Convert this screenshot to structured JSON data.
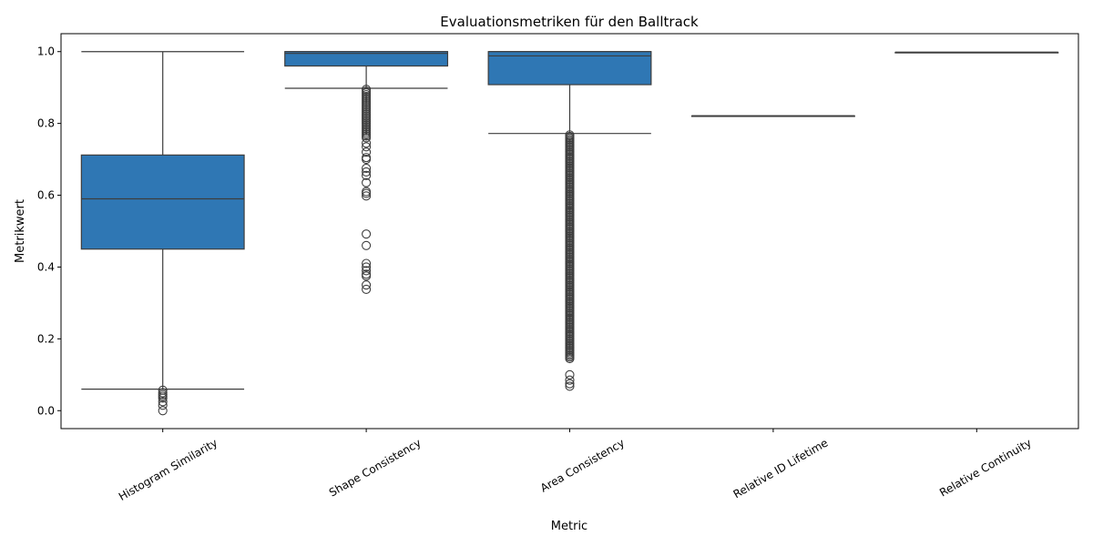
{
  "chart_data": {
    "type": "box",
    "title": "Evaluationsmetriken für den Balltrack",
    "xlabel": "Metric",
    "ylabel": "Metrikwert",
    "ylim": [
      -0.05,
      1.05
    ],
    "yticks": [
      0.0,
      0.2,
      0.4,
      0.6,
      0.8,
      1.0
    ],
    "ytick_labels": [
      "0.0",
      "0.2",
      "0.4",
      "0.6",
      "0.8",
      "1.0"
    ],
    "grid": false,
    "box_color": "#2f77b4",
    "categories": [
      "Histogram Similarity",
      "Shape Consistency",
      "Area Consistency",
      "Relative ID Lifetime",
      "Relative Continuity"
    ],
    "boxes": [
      {
        "category": "Histogram Similarity",
        "whisker_low": 0.06,
        "q1": 0.45,
        "median": 0.59,
        "q3": 0.712,
        "whisker_high": 1.0,
        "outliers": [
          0.057,
          0.05,
          0.045,
          0.04,
          0.035,
          0.025,
          0.015,
          0.0
        ]
      },
      {
        "category": "Shape Consistency",
        "whisker_low": 0.898,
        "q1": 0.96,
        "median": 0.995,
        "q3": 1.0,
        "whisker_high": 1.0,
        "outliers": [
          0.895,
          0.89,
          0.885,
          0.88,
          0.875,
          0.87,
          0.865,
          0.86,
          0.855,
          0.85,
          0.845,
          0.84,
          0.835,
          0.83,
          0.825,
          0.82,
          0.815,
          0.81,
          0.805,
          0.8,
          0.795,
          0.79,
          0.785,
          0.78,
          0.775,
          0.77,
          0.765,
          0.76,
          0.745,
          0.735,
          0.72,
          0.705,
          0.7,
          0.675,
          0.665,
          0.655,
          0.635,
          0.61,
          0.605,
          0.598,
          0.492,
          0.46,
          0.41,
          0.4,
          0.39,
          0.38,
          0.375,
          0.35,
          0.338
        ]
      },
      {
        "category": "Area Consistency",
        "whisker_low": 0.772,
        "q1": 0.908,
        "median": 0.988,
        "q3": 1.0,
        "whisker_high": 1.0,
        "outliers_dense_range": [
          0.145,
          0.768
        ],
        "outliers": [
          0.1,
          0.085,
          0.075,
          0.068
        ]
      },
      {
        "category": "Relative ID Lifetime",
        "whisker_low": 0.821,
        "q1": 0.821,
        "median": 0.821,
        "q3": 0.821,
        "whisker_high": 0.821,
        "outliers": []
      },
      {
        "category": "Relative Continuity",
        "whisker_low": 0.998,
        "q1": 0.998,
        "median": 0.998,
        "q3": 0.998,
        "whisker_high": 0.998,
        "outliers": []
      }
    ]
  }
}
